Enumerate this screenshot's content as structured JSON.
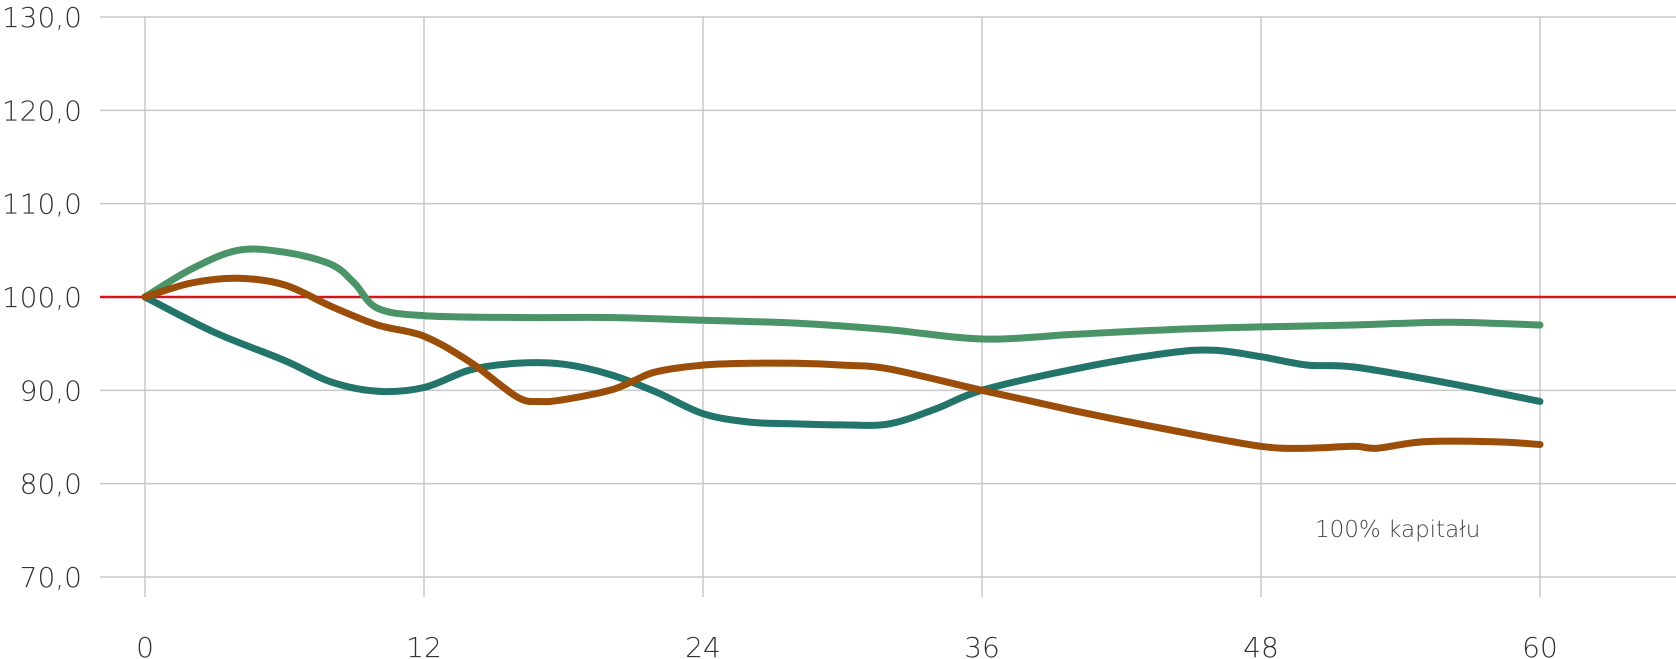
{
  "chart_data": {
    "type": "line",
    "title": "",
    "xlabel": "",
    "ylabel": "",
    "x_ticks": [
      0,
      12,
      24,
      36,
      48,
      60
    ],
    "x_tick_labels": [
      "0",
      "12",
      "24",
      "36",
      "48",
      "60"
    ],
    "y_ticks": [
      70,
      80,
      90,
      100,
      110,
      120,
      130
    ],
    "y_tick_labels": [
      "70,0",
      "80,0",
      "90,0",
      "100,0",
      "110,0",
      "120,0",
      "130,0"
    ],
    "xlim": [
      -2,
      66
    ],
    "ylim": [
      70,
      130
    ],
    "grid": true,
    "reference_line": {
      "y": 100,
      "color": "#d7141a"
    },
    "annotation": "100% kapitału",
    "series": [
      {
        "color": "#4a9468",
        "x": [
          0,
          2,
          4,
          6,
          8,
          9,
          10,
          12,
          16,
          20,
          24,
          28,
          32,
          36,
          40,
          44,
          48,
          52,
          56,
          60
        ],
        "values": [
          100,
          103,
          105,
          104.8,
          103.5,
          101.5,
          98.8,
          98,
          97.8,
          97.8,
          97.5,
          97.2,
          96.5,
          95.5,
          96,
          96.5,
          96.8,
          97,
          97.3,
          97
        ]
      },
      {
        "color": "#23756c",
        "x": [
          0,
          3,
          6,
          8,
          10,
          12,
          14,
          16,
          18,
          20,
          22,
          24,
          26,
          28,
          30,
          32,
          34,
          36,
          40,
          44,
          46,
          48,
          50,
          52,
          56,
          60
        ],
        "values": [
          100,
          96.2,
          93.2,
          90.9,
          89.9,
          90.3,
          92.2,
          92.9,
          92.8,
          91.7,
          89.8,
          87.5,
          86.6,
          86.4,
          86.3,
          86.4,
          88,
          90,
          92.3,
          94,
          94.3,
          93.6,
          92.7,
          92.5,
          90.8,
          88.8
        ]
      },
      {
        "color": "#9b4d0a",
        "x": [
          0,
          2,
          4,
          6,
          8,
          10,
          12,
          14,
          16,
          17,
          18,
          20,
          21,
          22,
          24,
          26,
          28,
          30,
          32,
          36,
          40,
          44,
          48,
          50,
          52,
          53,
          55,
          58,
          60
        ],
        "values": [
          100,
          101.5,
          102,
          101.3,
          99,
          97,
          95.8,
          93,
          89.3,
          88.8,
          89,
          90,
          91,
          92,
          92.7,
          92.9,
          92.9,
          92.7,
          92.3,
          90,
          87.8,
          85.8,
          84,
          83.8,
          84,
          83.8,
          84.5,
          84.5,
          84.2
        ]
      }
    ]
  }
}
